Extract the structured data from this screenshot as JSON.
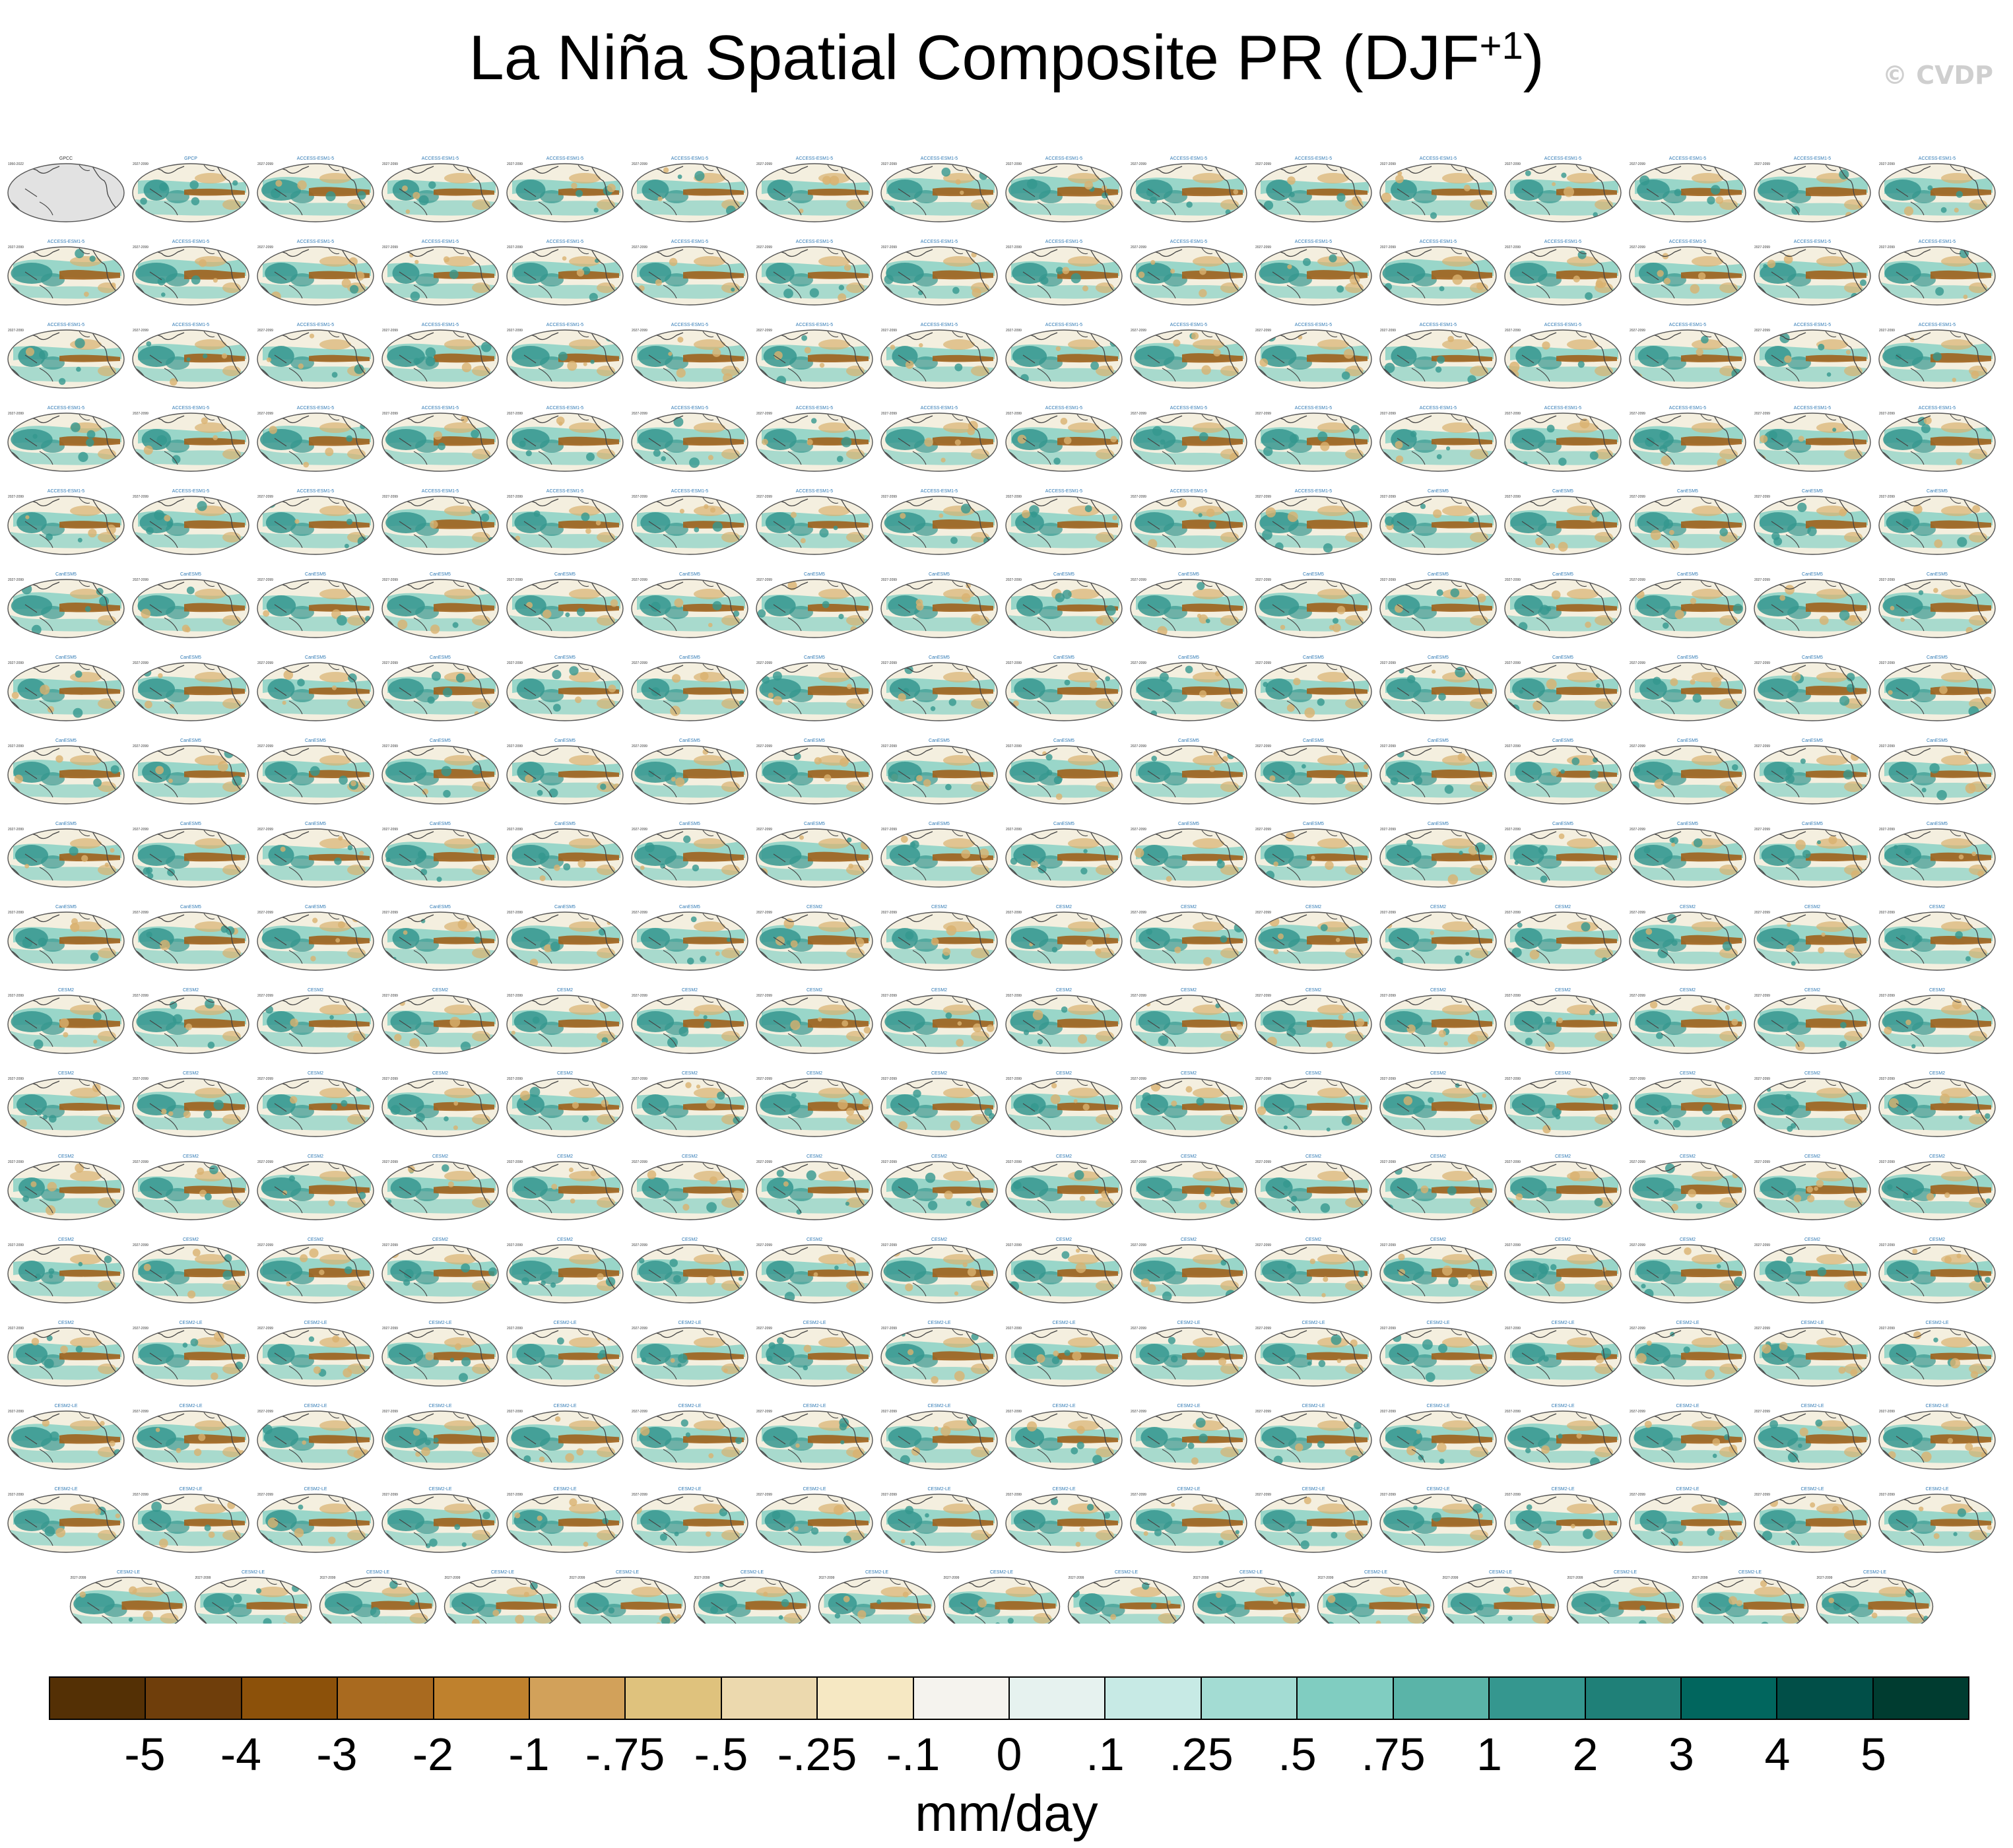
{
  "header": {
    "title_main": "La Niña Spatial Composite PR (DJF",
    "title_sup": "+1",
    "title_close": ")",
    "watermark": "© CVDP"
  },
  "chart_data": {
    "type": "heatmap",
    "description_kind": "small-multiple global maps",
    "title": "La Niña Spatial Composite PR (DJF+1)",
    "variable": "PR",
    "season": "DJF+1",
    "units": "mm/day",
    "grid": {
      "full_rows": 17,
      "full_row_count": 16,
      "last_row_count": 15,
      "total_panels": 287
    },
    "panels": {
      "first_labels": [
        "GPCC",
        "GPCP"
      ],
      "first_period": "1950-2022",
      "model_period": "2027-2099",
      "model_families": [
        "ACCESS-ESM1-5",
        "CanESM5",
        "CESM2",
        "CESM2-LE"
      ]
    },
    "colorbar": {
      "labels": [
        "-5",
        "-4",
        "-3",
        "-2",
        "-1",
        "-.75",
        "-.5",
        "-.25",
        "-.1",
        "0",
        ".1",
        ".25",
        ".5",
        ".75",
        "1",
        "2",
        "3",
        "4",
        "5"
      ],
      "colors": [
        "#543005",
        "#6f3e0b",
        "#8c510a",
        "#a96a1f",
        "#bf812d",
        "#d2a15a",
        "#dfc27d",
        "#ecd9ae",
        "#f6e8c3",
        "#f5f3ee",
        "#e6f2ef",
        "#c7eae5",
        "#a3dcd3",
        "#80cdc1",
        "#5ab4a8",
        "#35978f",
        "#1f8078",
        "#01665e",
        "#014f48",
        "#003c30"
      ]
    },
    "map_colors": {
      "ocean_base": "#f4efdf",
      "land_base": "#f8f6f0",
      "wet": "#35978f",
      "wet_light": "#8fd3c7",
      "dry": "#a0621c",
      "dry_light": "#d9b26f",
      "coast": "#444444",
      "obs_gray": "#e2e2e2"
    }
  }
}
